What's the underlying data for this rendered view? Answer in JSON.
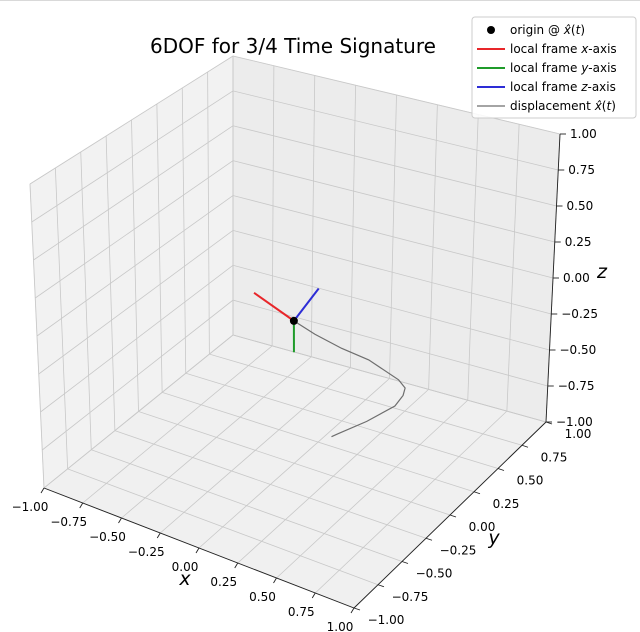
{
  "chart_data": {
    "type": "line",
    "title": "6DOF for 3/4 Time Signature",
    "xlabel": "x",
    "ylabel": "y",
    "zlabel": "z",
    "xlim": [
      -1,
      1
    ],
    "ylim": [
      -1,
      1
    ],
    "zlim": [
      -1,
      1
    ],
    "x_ticks": [
      "−1.00",
      "−0.75",
      "−0.50",
      "−0.25",
      "0.00",
      "0.25",
      "0.50",
      "0.75",
      "1.00"
    ],
    "y_ticks": [
      "−1.00",
      "−0.75",
      "−0.50",
      "−0.25",
      "0.00",
      "0.25",
      "0.50",
      "0.75",
      "1.00"
    ],
    "z_ticks": [
      "−1.00",
      "−0.75",
      "−0.50",
      "−0.25",
      "0.00",
      "0.25",
      "0.50",
      "0.75",
      "1.00"
    ],
    "grid": true,
    "legend_position": "top-right",
    "legend": [
      {
        "label": "origin @ x̂(t)",
        "kind": "marker",
        "color": "#000000"
      },
      {
        "label": "local frame x-axis",
        "kind": "line",
        "color": "#e8262a"
      },
      {
        "label": "local frame y-axis",
        "kind": "line",
        "color": "#1f9b2a"
      },
      {
        "label": "local frame z-axis",
        "kind": "line",
        "color": "#2d2dd6"
      },
      {
        "label": "displacement x̂(t)",
        "kind": "line",
        "color": "#6e6e6e"
      }
    ],
    "origin": {
      "x": 0.0,
      "y": 0.0,
      "z": 0.0
    },
    "frame_axes": {
      "x_axis": {
        "dx": -0.25,
        "dy": 0.0,
        "dz": 0.1
      },
      "y_axis": {
        "dx": 0.0,
        "dy": 0.0,
        "dz": -0.22
      },
      "z_axis": {
        "dx": 0.0,
        "dy": 0.25,
        "dz": 0.08
      }
    },
    "displacement": {
      "x": [
        0.0,
        0.12,
        0.27,
        0.41,
        0.55,
        0.58,
        0.58,
        0.56,
        0.45,
        0.33,
        0.3
      ],
      "y": [
        0.0,
        0.02,
        0.05,
        0.1,
        0.18,
        0.2,
        0.18,
        0.13,
        0.02,
        -0.08,
        -0.1
      ],
      "z": [
        0.0,
        -0.06,
        -0.12,
        -0.18,
        -0.32,
        -0.38,
        -0.42,
        -0.47,
        -0.55,
        -0.62,
        -0.64
      ]
    }
  }
}
